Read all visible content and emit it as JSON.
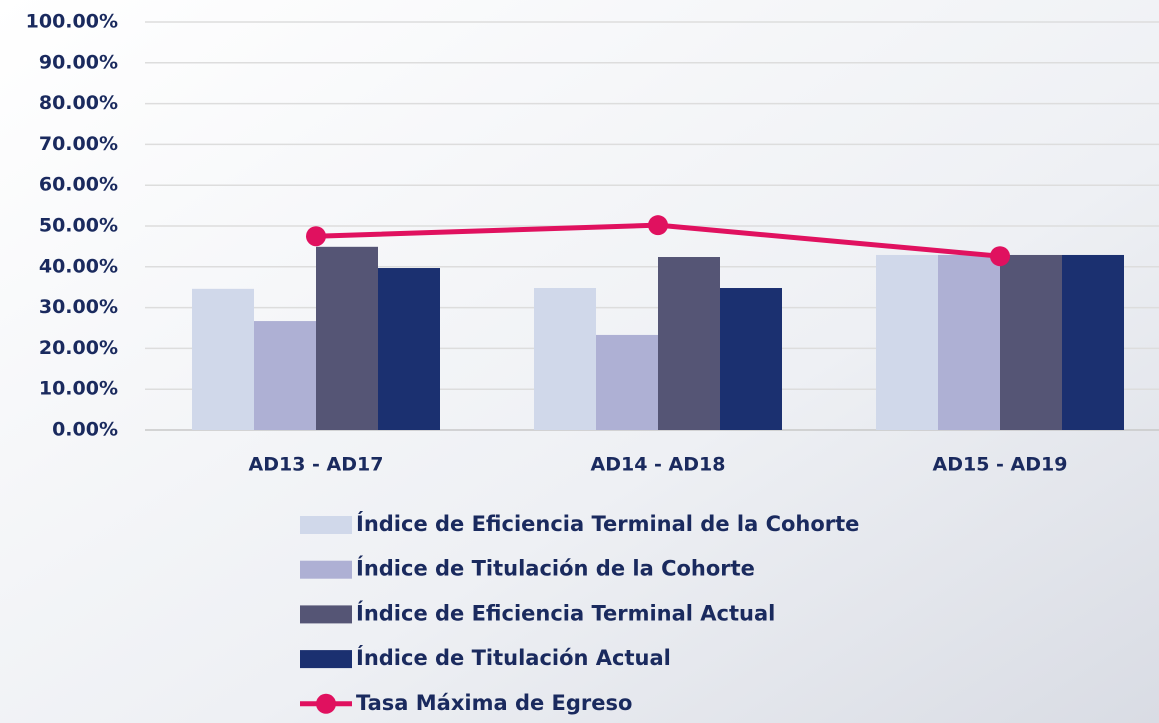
{
  "chart_data": {
    "type": "bar",
    "categories": [
      "AD13 - AD17",
      "AD14 - AD18",
      "AD15 - AD19"
    ],
    "series": [
      {
        "name": "Índice de Eficiencia Terminal de la Cohorte",
        "color": "#d0d8ea",
        "values": [
          34.6,
          34.8,
          42.9
        ]
      },
      {
        "name": "Índice de Titulación de la Cohorte",
        "color": "#aeb0d4",
        "values": [
          26.7,
          23.3,
          42.9
        ]
      },
      {
        "name": "Índice de Eficiencia Terminal Actual",
        "color": "#555575",
        "values": [
          44.9,
          42.4,
          42.9
        ]
      },
      {
        "name": "Índice de Titulación Actual",
        "color": "#1b3070",
        "values": [
          39.7,
          34.8,
          42.9
        ]
      },
      {
        "name": "Tasa Máxima de Egreso",
        "color": "#e0115f",
        "type": "line",
        "values": [
          47.5,
          50.2,
          42.6
        ]
      }
    ],
    "ylim": [
      0,
      100
    ],
    "yticks": [
      {
        "value": 0,
        "label": "0.00%"
      },
      {
        "value": 10,
        "label": "10.00%"
      },
      {
        "value": 20,
        "label": "20.00%"
      },
      {
        "value": 30,
        "label": "30.00%"
      },
      {
        "value": 40,
        "label": "40.00%"
      },
      {
        "value": 50,
        "label": "50.00%"
      },
      {
        "value": 60,
        "label": "60.00%"
      },
      {
        "value": 70,
        "label": "70.00%"
      },
      {
        "value": 80,
        "label": "80.00%"
      },
      {
        "value": 90,
        "label": "90.00%"
      },
      {
        "value": 100,
        "label": "100.00%"
      }
    ],
    "grid": true
  }
}
